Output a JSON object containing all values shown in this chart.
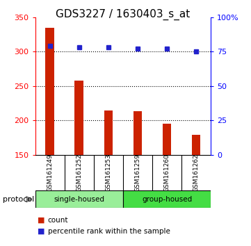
{
  "title": "GDS3227 / 1630403_s_at",
  "samples": [
    "GSM161249",
    "GSM161252",
    "GSM161253",
    "GSM161259",
    "GSM161260",
    "GSM161262"
  ],
  "bar_values": [
    335,
    258,
    215,
    214,
    195,
    179
  ],
  "bar_base": 150,
  "bar_color": "#cc2200",
  "percentile_values": [
    79,
    78,
    78,
    77,
    77,
    75
  ],
  "percentile_color": "#2222cc",
  "left_ylim": [
    150,
    350
  ],
  "right_ylim": [
    0,
    100
  ],
  "left_yticks": [
    150,
    200,
    250,
    300,
    350
  ],
  "right_yticks": [
    0,
    25,
    50,
    75,
    100
  ],
  "right_yticklabels": [
    "0",
    "25",
    "50",
    "75",
    "100%"
  ],
  "grid_values": [
    200,
    250,
    300
  ],
  "groups": [
    {
      "label": "single-housed",
      "indices": [
        0,
        1,
        2
      ],
      "color": "#99ee99"
    },
    {
      "label": "group-housed",
      "indices": [
        3,
        4,
        5
      ],
      "color": "#44dd44"
    }
  ],
  "protocol_label": "protocol",
  "legend_count_label": "count",
  "legend_pct_label": "percentile rank within the sample",
  "bg_color": "#ffffff",
  "sample_bg_color": "#cccccc",
  "title_fontsize": 11,
  "bar_width": 0.3
}
